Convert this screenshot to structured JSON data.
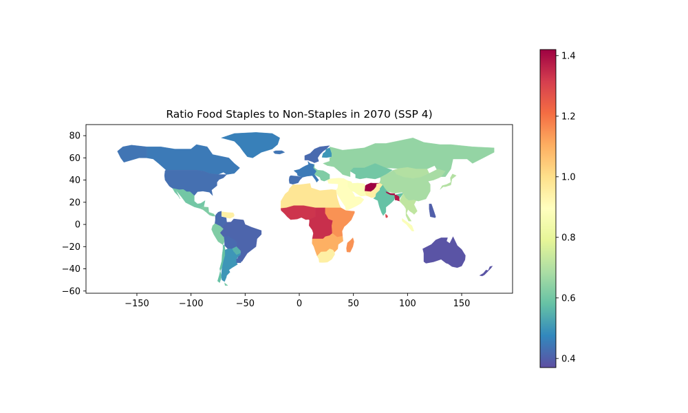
{
  "chart_data": {
    "type": "choropleth",
    "title": "Ratio Food Staples to Non-Staples in 2070 (SSP 4)",
    "xlabel": "",
    "ylabel": "",
    "xlim": [
      -197,
      197
    ],
    "ylim": [
      -62,
      90
    ],
    "xticks": [
      -150,
      -100,
      -50,
      0,
      50,
      100,
      150
    ],
    "yticks": [
      80,
      60,
      40,
      20,
      0,
      -20,
      -40,
      -60
    ],
    "xtick_labels": [
      "−150",
      "−100",
      "−50",
      "0",
      "50",
      "100",
      "150"
    ],
    "ytick_labels": [
      "80",
      "60",
      "40",
      "20",
      "0",
      "−20",
      "−40",
      "−60"
    ],
    "colorbar": {
      "colormap": "Spectral_r",
      "range": [
        0.37,
        1.42
      ],
      "ticks": [
        1.4,
        1.2,
        1.0,
        0.8,
        0.6,
        0.4
      ],
      "tick_labels": [
        "1.4",
        "1.2",
        "1.0",
        "0.8",
        "0.6",
        "0.4"
      ],
      "stops": [
        "#5e4fa2",
        "#3288bd",
        "#66c2a5",
        "#abdda4",
        "#e6f598",
        "#ffffbf",
        "#fee08b",
        "#fdae61",
        "#f46d43",
        "#d53e4f",
        "#9e0142"
      ]
    },
    "regions": [
      {
        "name": "Canada",
        "value": 0.45
      },
      {
        "name": "Greenland",
        "value": 0.46
      },
      {
        "name": "Alaska",
        "value": 0.44
      },
      {
        "name": "United States",
        "value": 0.43
      },
      {
        "name": "Mexico",
        "value": 0.6
      },
      {
        "name": "Central America",
        "value": 0.62
      },
      {
        "name": "Venezuela",
        "value": 0.95
      },
      {
        "name": "Colombia",
        "value": 0.42
      },
      {
        "name": "Peru",
        "value": 0.62
      },
      {
        "name": "Brazil",
        "value": 0.41
      },
      {
        "name": "Bolivia",
        "value": 0.42
      },
      {
        "name": "Paraguay",
        "value": 0.55
      },
      {
        "name": "Chile",
        "value": 0.58
      },
      {
        "name": "Argentina",
        "value": 0.5
      },
      {
        "name": "Uruguay",
        "value": 0.42
      },
      {
        "name": "Patagonia",
        "value": 0.6
      },
      {
        "name": "Western Europe",
        "value": 0.45
      },
      {
        "name": "Iberia",
        "value": 0.43
      },
      {
        "name": "Scandinavia",
        "value": 0.42
      },
      {
        "name": "Finland",
        "value": 0.5
      },
      {
        "name": "Eastern Europe",
        "value": 0.62
      },
      {
        "name": "Russia",
        "value": 0.65
      },
      {
        "name": "Kazakhstan",
        "value": 0.6
      },
      {
        "name": "Mongolia",
        "value": 0.7
      },
      {
        "name": "China",
        "value": 0.68
      },
      {
        "name": "North Africa",
        "value": 0.98
      },
      {
        "name": "Middle East",
        "value": 0.9
      },
      {
        "name": "Iran",
        "value": 0.88
      },
      {
        "name": "Afghanistan",
        "value": 1.42
      },
      {
        "name": "Pakistan",
        "value": 0.95
      },
      {
        "name": "India",
        "value": 0.58
      },
      {
        "name": "Nepal",
        "value": 1.4
      },
      {
        "name": "Bangladesh",
        "value": 1.38
      },
      {
        "name": "Sri Lanka",
        "value": 1.3
      },
      {
        "name": "Southeast Asia",
        "value": 0.72
      },
      {
        "name": "Indonesia",
        "value": 0.88
      },
      {
        "name": "Philippines",
        "value": 0.4
      },
      {
        "name": "Japan",
        "value": 0.7
      },
      {
        "name": "West Africa",
        "value": 1.33
      },
      {
        "name": "Central Africa",
        "value": 1.34
      },
      {
        "name": "East Africa",
        "value": 1.15
      },
      {
        "name": "Southern Africa",
        "value": 1.1
      },
      {
        "name": "South Africa",
        "value": 0.95
      },
      {
        "name": "Madagascar",
        "value": 1.15
      },
      {
        "name": "Australia",
        "value": 0.38
      },
      {
        "name": "New Zealand",
        "value": 0.38
      },
      {
        "name": "Iceland",
        "value": 0.44
      }
    ]
  }
}
